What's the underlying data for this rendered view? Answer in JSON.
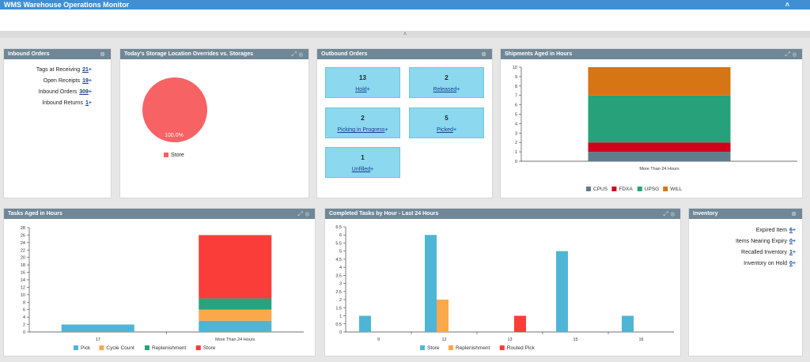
{
  "app": {
    "title": "WMS Warehouse Operations Monitor"
  },
  "colors": {
    "header_bar": "#3f8fd2",
    "panel_header": "#6f8797",
    "tile": "#8bd8ef",
    "link": "#1a3e8c"
  },
  "inbound": {
    "title": "Inbound Orders",
    "items": [
      {
        "label": "Tags at Receiving",
        "value": "21"
      },
      {
        "label": "Open Receipts",
        "value": "19"
      },
      {
        "label": "Inbound Orders",
        "value": "309"
      },
      {
        "label": "Inbound Returns",
        "value": "1"
      }
    ]
  },
  "storage": {
    "title": "Today's Storage Location Overrides vs. Storages",
    "chart_data": {
      "type": "pie",
      "slices": [
        {
          "label": "Store",
          "value": 100.0,
          "display": "100.0%",
          "color": "#f76264"
        }
      ],
      "legend": [
        "Store"
      ]
    }
  },
  "outbound": {
    "title": "Outbound Orders",
    "tiles": [
      {
        "count": "13",
        "label": "Hold"
      },
      {
        "count": "2",
        "label": "Released"
      },
      {
        "count": "2",
        "label": "Picking in Progress"
      },
      {
        "count": "5",
        "label": "Picked"
      },
      {
        "count": "1",
        "label": "Unfilled"
      }
    ]
  },
  "shipments": {
    "title": "Shipments Aged in Hours",
    "chart_data": {
      "type": "bar",
      "stacked": true,
      "categories": [
        "More Than 24 Hours"
      ],
      "series": [
        {
          "name": "CPUS",
          "values": [
            1
          ],
          "color": "#607d8b"
        },
        {
          "name": "FDXA",
          "values": [
            1
          ],
          "color": "#d0021b"
        },
        {
          "name": "UPSG",
          "values": [
            5
          ],
          "color": "#26a17a"
        },
        {
          "name": "WILL",
          "values": [
            3
          ],
          "color": "#d57514"
        }
      ],
      "ylim": [
        0,
        10
      ],
      "yticks": [
        "0",
        "1",
        "2",
        "3",
        "4",
        "5",
        "6",
        "7",
        "8",
        "9",
        "10"
      ],
      "legend_position": "bottom"
    }
  },
  "tasks": {
    "title": "Tasks Aged in Hours",
    "chart_data": {
      "type": "bar",
      "stacked": true,
      "categories": [
        "17",
        "More Than 24 Hours"
      ],
      "series": [
        {
          "name": "Pick",
          "values": [
            2,
            3
          ],
          "color": "#4fb5d6"
        },
        {
          "name": "Cycle Count",
          "values": [
            0,
            3
          ],
          "color": "#fba84a"
        },
        {
          "name": "Replenishment",
          "values": [
            0,
            3
          ],
          "color": "#29a37c"
        },
        {
          "name": "Store",
          "values": [
            0,
            17
          ],
          "color": "#fb3d3a"
        }
      ],
      "ylim": [
        0,
        28
      ],
      "yticks": [
        "0",
        "2",
        "4",
        "6",
        "8",
        "10",
        "12",
        "14",
        "16",
        "18",
        "20",
        "22",
        "24",
        "26",
        "28"
      ],
      "legend_position": "bottom"
    }
  },
  "completed": {
    "title": "Completed Tasks by Hour - Last 24 Hours",
    "chart_data": {
      "type": "bar",
      "stacked": false,
      "categories": [
        "9",
        "12",
        "13",
        "15",
        "16"
      ],
      "series": [
        {
          "name": "Store",
          "values": [
            1,
            6,
            0,
            5,
            1
          ],
          "color": "#4fb5d6"
        },
        {
          "name": "Replenishment",
          "values": [
            0,
            2,
            0,
            0,
            0
          ],
          "color": "#fba84a"
        },
        {
          "name": "Routed Pick",
          "values": [
            0,
            0,
            1,
            0,
            0
          ],
          "color": "#fb3d3a"
        }
      ],
      "ylim": [
        0,
        6.5
      ],
      "yticks": [
        "0",
        "0.5",
        "1",
        "1.5",
        "2",
        "2.5",
        "3",
        "3.5",
        "4",
        "4.5",
        "5",
        "5.5",
        "6",
        "6.5"
      ],
      "legend_position": "bottom"
    }
  },
  "inventory": {
    "title": "Inventory",
    "items": [
      {
        "label": "Expired Item",
        "value": "6"
      },
      {
        "label": "Items Nearing Expiry",
        "value": "0"
      },
      {
        "label": "Recalled Inventory",
        "value": "1"
      },
      {
        "label": "Inventory on Hold",
        "value": "0"
      }
    ]
  }
}
